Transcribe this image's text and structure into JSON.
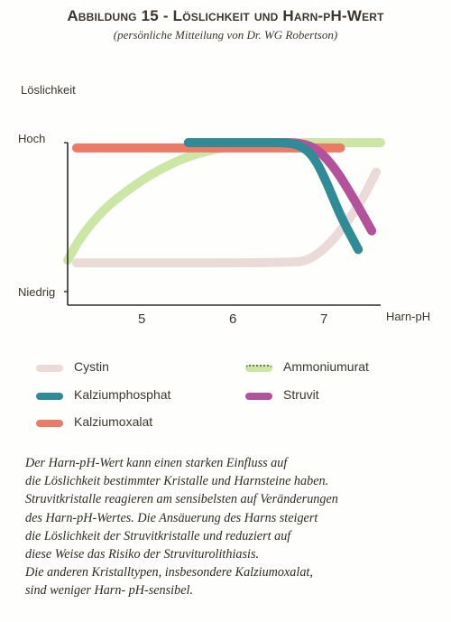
{
  "header": {
    "title": "Abbildung 15 - Löslichkeit und Harn-pH-Wert",
    "subtitle": "(persönliche Mitteilung von Dr. WG Robertson)"
  },
  "chart_data": {
    "type": "line",
    "title": "Abbildung 15 - Löslichkeit und Harn-pH-Wert",
    "ylabel": "Löslichkeit",
    "xlabel": "Harn-pH",
    "y_ticks": [
      "Hoch",
      "Niedrig"
    ],
    "x_ticks": [
      "5",
      "6",
      "7"
    ],
    "xlim": [
      4.2,
      7.7
    ],
    "ylim": [
      0,
      1
    ],
    "series": [
      {
        "name": "Cystin",
        "color": "#eadbd9",
        "x": [
          4.3,
          6.7,
          6.9,
          7.1,
          7.3,
          7.5,
          7.65
        ],
        "y": [
          0.1,
          0.1,
          0.12,
          0.22,
          0.38,
          0.58,
          0.78
        ]
      },
      {
        "name": "Kalziumphosphat",
        "color": "#2f8b96",
        "x": [
          5.55,
          6.4,
          6.65,
          6.8,
          6.95,
          7.1,
          7.25,
          7.45
        ],
        "y": [
          1.0,
          1.0,
          1.0,
          0.98,
          0.9,
          0.7,
          0.45,
          0.2
        ]
      },
      {
        "name": "Kalziumoxalat",
        "color": "#ec7a66",
        "x": [
          4.3,
          7.25
        ],
        "y": [
          0.96,
          0.96
        ]
      },
      {
        "name": "Ammoniumurat",
        "color": "#cce6a5",
        "x": [
          4.2,
          4.35,
          4.6,
          4.9,
          5.2,
          5.55,
          5.9,
          6.3,
          6.8,
          7.2,
          7.7
        ],
        "y": [
          0.12,
          0.3,
          0.5,
          0.66,
          0.79,
          0.9,
          0.96,
          0.99,
          1.0,
          1.0,
          1.0
        ]
      },
      {
        "name": "Struvit",
        "color": "#b3529a",
        "x": [
          5.55,
          6.5,
          6.8,
          7.0,
          7.2,
          7.4,
          7.6
        ],
        "y": [
          1.0,
          1.0,
          1.0,
          0.95,
          0.8,
          0.58,
          0.34
        ]
      }
    ],
    "legend": {
      "position": "bottom"
    }
  },
  "legend": {
    "items": [
      {
        "label": "Cystin",
        "color": "#eadbd9"
      },
      {
        "label": "Kalziumphosphat",
        "color": "#2f8b96"
      },
      {
        "label": "Kalziumoxalat",
        "color": "#ec7a66"
      },
      {
        "label": "Ammoniumurat",
        "color": "#cce6a5"
      },
      {
        "label": "Struvit",
        "color": "#b3529a"
      }
    ]
  },
  "caption": {
    "lines": [
      "Der Harn-pH-Wert kann einen starken Einfluss auf",
      "die Löslichkeit bestimmter Kristalle und Harnsteine haben.",
      "Struvitkristalle reagieren am sensibelsten auf Veränderungen",
      "des Harn-pH-Wertes. Die Ansäuerung des Harns steigert",
      "die Löslichkeit der Struvitkristalle und reduziert auf",
      "diese Weise das Risiko der Struviturolithiasis.",
      "Die anderen Kristalltypen, insbesondere Kalziumoxalat,",
      "sind weniger Harn- pH-sensibel."
    ]
  }
}
